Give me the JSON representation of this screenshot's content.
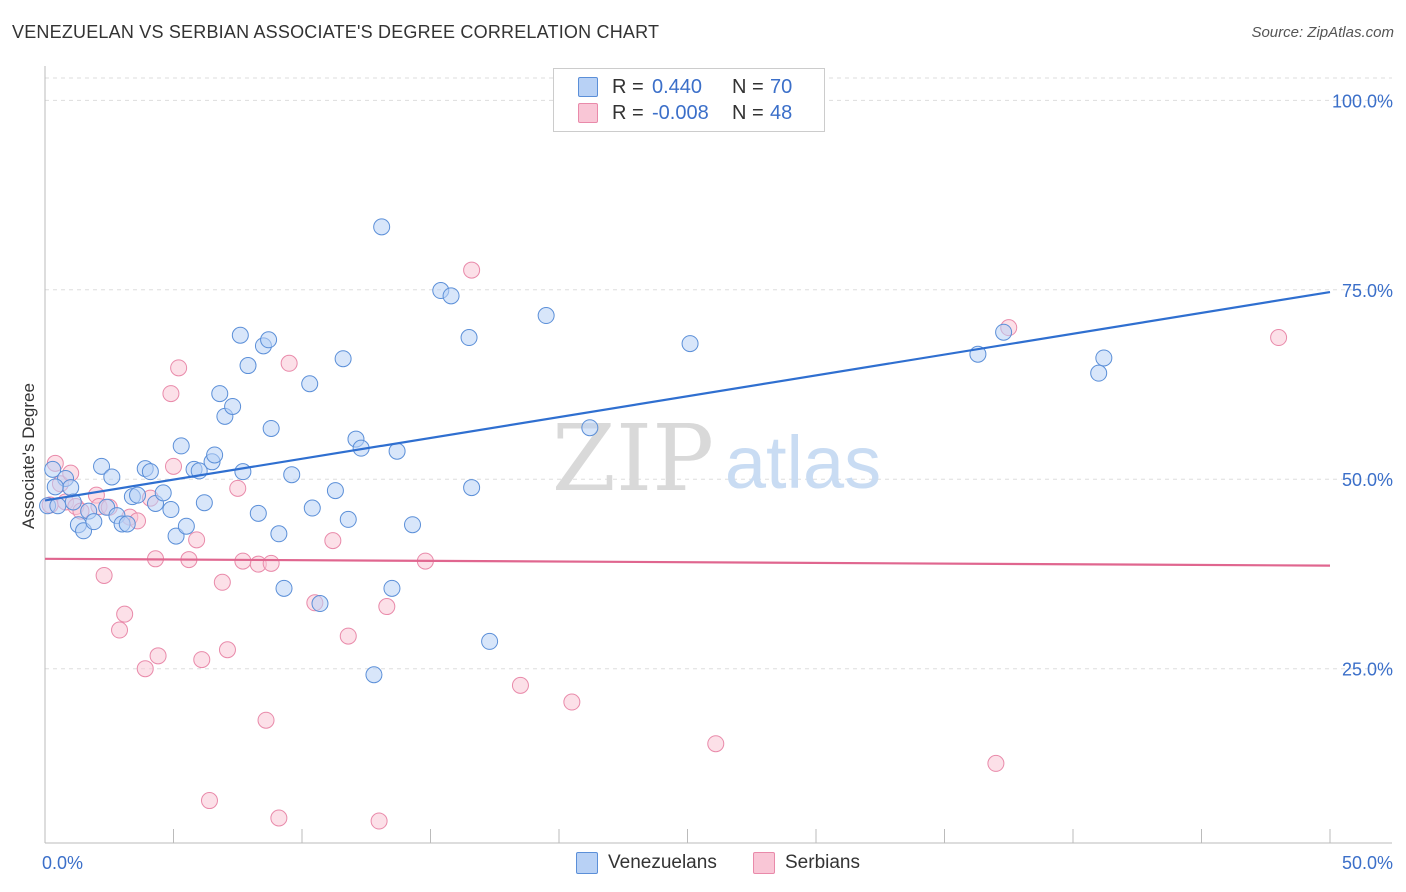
{
  "title": "VENEZUELAN VS SERBIAN ASSOCIATE'S DEGREE CORRELATION CHART",
  "source": "Source: ZipAtlas.com",
  "watermark": {
    "zip": "ZIP",
    "atlas": "atlas"
  },
  "legend": {
    "r_label": "R =",
    "n_label": "N =",
    "rows": [
      {
        "r": "0.440",
        "n": "70",
        "fill": "#b8d1f5",
        "stroke": "#5b8fd8"
      },
      {
        "r": "-0.008",
        "n": "48",
        "fill": "#f9c6d6",
        "stroke": "#e98aaa"
      }
    ]
  },
  "chart_data": {
    "type": "scatter",
    "title": "VENEZUELAN VS SERBIAN ASSOCIATE'S DEGREE CORRELATION CHART",
    "xlabel": "",
    "ylabel": "Associate's Degree",
    "xlim": [
      0,
      50
    ],
    "ylim": [
      2,
      104
    ],
    "x_tick_labels": [
      "0.0%",
      "50.0%"
    ],
    "y_ticks": [
      25,
      50,
      75,
      100
    ],
    "y_tick_labels": [
      "25.0%",
      "50.0%",
      "75.0%",
      "100.0%"
    ],
    "grid": "horizontal dashed",
    "series": [
      {
        "name": "Venezuelans",
        "color": "#5b8fd8",
        "fill": "#b8d1f5",
        "trend": {
          "x": [
            0,
            50
          ],
          "y": [
            47.2,
            74.7
          ]
        },
        "points": [
          [
            0.1,
            46.5
          ],
          [
            0.3,
            51.3
          ],
          [
            0.5,
            46.5
          ],
          [
            0.8,
            50.1
          ],
          [
            1.0,
            48.9
          ],
          [
            1.3,
            44.0
          ],
          [
            1.5,
            43.2
          ],
          [
            1.7,
            45.8
          ],
          [
            1.9,
            44.4
          ],
          [
            2.2,
            51.7
          ],
          [
            2.4,
            46.3
          ],
          [
            2.6,
            50.3
          ],
          [
            2.8,
            45.2
          ],
          [
            3.0,
            44.1
          ],
          [
            3.2,
            44.1
          ],
          [
            3.4,
            47.7
          ],
          [
            3.6,
            47.9
          ],
          [
            3.9,
            51.4
          ],
          [
            4.1,
            51.0
          ],
          [
            4.3,
            46.8
          ],
          [
            4.6,
            48.2
          ],
          [
            4.9,
            46.0
          ],
          [
            5.1,
            42.5
          ],
          [
            5.3,
            54.4
          ],
          [
            5.5,
            43.8
          ],
          [
            5.8,
            51.3
          ],
          [
            6.0,
            51.1
          ],
          [
            6.2,
            46.9
          ],
          [
            6.5,
            52.3
          ],
          [
            6.6,
            53.2
          ],
          [
            6.8,
            61.3
          ],
          [
            7.0,
            58.3
          ],
          [
            7.3,
            59.6
          ],
          [
            7.6,
            69.0
          ],
          [
            7.7,
            51.0
          ],
          [
            7.9,
            65.0
          ],
          [
            8.3,
            45.5
          ],
          [
            8.5,
            67.6
          ],
          [
            8.7,
            68.4
          ],
          [
            8.8,
            56.7
          ],
          [
            9.1,
            42.8
          ],
          [
            9.3,
            35.6
          ],
          [
            9.6,
            50.6
          ],
          [
            10.3,
            62.6
          ],
          [
            10.4,
            46.2
          ],
          [
            10.7,
            33.6
          ],
          [
            11.3,
            48.5
          ],
          [
            11.6,
            65.9
          ],
          [
            11.8,
            44.7
          ],
          [
            12.1,
            55.3
          ],
          [
            12.3,
            54.1
          ],
          [
            12.8,
            24.2
          ],
          [
            13.1,
            83.3
          ],
          [
            13.5,
            35.6
          ],
          [
            13.7,
            53.7
          ],
          [
            14.3,
            44.0
          ],
          [
            15.4,
            74.9
          ],
          [
            15.8,
            74.2
          ],
          [
            16.5,
            68.7
          ],
          [
            16.6,
            48.9
          ],
          [
            17.3,
            28.6
          ],
          [
            19.5,
            71.6
          ],
          [
            21.2,
            56.8
          ],
          [
            25.1,
            67.9
          ],
          [
            36.3,
            66.5
          ],
          [
            37.3,
            69.4
          ],
          [
            41.0,
            64.0
          ],
          [
            41.2,
            66.0
          ],
          [
            0.4,
            49.0
          ],
          [
            1.1,
            47.0
          ]
        ]
      },
      {
        "name": "Serbians",
        "color": "#e98aaa",
        "fill": "#f9c6d6",
        "trend": {
          "x": [
            0,
            50
          ],
          "y": [
            39.5,
            38.6
          ]
        },
        "points": [
          [
            0.2,
            46.6
          ],
          [
            0.4,
            52.1
          ],
          [
            0.6,
            49.4
          ],
          [
            0.8,
            47.0
          ],
          [
            1.0,
            50.8
          ],
          [
            1.2,
            46.4
          ],
          [
            1.4,
            45.8
          ],
          [
            2.0,
            47.9
          ],
          [
            2.1,
            46.4
          ],
          [
            2.3,
            37.3
          ],
          [
            2.5,
            46.3
          ],
          [
            2.9,
            30.1
          ],
          [
            3.1,
            32.2
          ],
          [
            3.3,
            45.0
          ],
          [
            3.6,
            44.5
          ],
          [
            3.9,
            25.0
          ],
          [
            4.1,
            47.5
          ],
          [
            4.3,
            39.5
          ],
          [
            4.4,
            26.7
          ],
          [
            4.9,
            61.3
          ],
          [
            5.0,
            51.7
          ],
          [
            5.2,
            64.7
          ],
          [
            5.6,
            39.4
          ],
          [
            5.9,
            42.0
          ],
          [
            6.1,
            26.2
          ],
          [
            6.4,
            7.6
          ],
          [
            6.9,
            36.4
          ],
          [
            7.1,
            27.5
          ],
          [
            7.5,
            48.8
          ],
          [
            7.7,
            39.2
          ],
          [
            8.3,
            38.8
          ],
          [
            8.6,
            18.2
          ],
          [
            8.8,
            38.9
          ],
          [
            9.1,
            5.3
          ],
          [
            9.5,
            65.3
          ],
          [
            10.5,
            33.7
          ],
          [
            11.2,
            41.9
          ],
          [
            11.8,
            29.3
          ],
          [
            13.0,
            4.9
          ],
          [
            13.3,
            33.2
          ],
          [
            14.8,
            39.2
          ],
          [
            16.6,
            77.6
          ],
          [
            18.5,
            22.8
          ],
          [
            20.5,
            20.6
          ],
          [
            26.1,
            15.1
          ],
          [
            37.0,
            12.5
          ],
          [
            37.5,
            70.0
          ],
          [
            48.0,
            68.7
          ]
        ]
      }
    ]
  },
  "bottom_legend": [
    {
      "label": "Venezuelans"
    },
    {
      "label": "Serbians"
    }
  ]
}
